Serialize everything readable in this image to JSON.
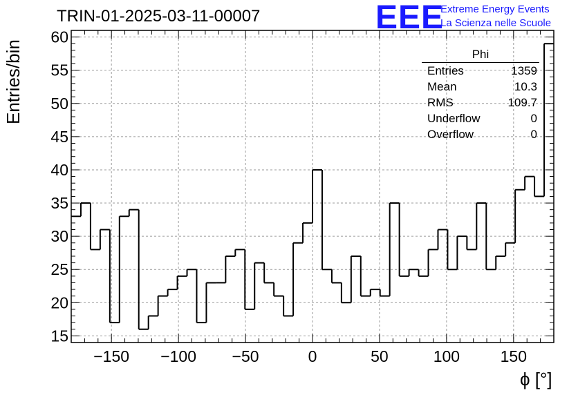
{
  "title": "TRIN-01-2025-03-11-00007",
  "logo": {
    "mark": "EEE",
    "line1": "Extreme Energy Events",
    "line2": "La Scienza nelle Scuole",
    "color": "#1a1aff"
  },
  "stats": {
    "title": "Phi",
    "rows": [
      {
        "label": "Entries",
        "value": "1359"
      },
      {
        "label": "Mean",
        "value": "10.3"
      },
      {
        "label": "RMS",
        "value": "109.7"
      },
      {
        "label": "Underflow",
        "value": "0"
      },
      {
        "label": "Overflow",
        "value": "0"
      }
    ]
  },
  "chart_data": {
    "type": "histogram",
    "xlabel": "ϕ [°]",
    "ylabel": "Entries/bin",
    "xlim": [
      -180,
      180
    ],
    "ylim": [
      14,
      61
    ],
    "bin_width": 7.2,
    "values": [
      33,
      35,
      28,
      31,
      17,
      33,
      34,
      16,
      18,
      21,
      22,
      24,
      25,
      17,
      23,
      23,
      27,
      28,
      19,
      26,
      23,
      21,
      18,
      29,
      32,
      40,
      25,
      23,
      20,
      27,
      21,
      22,
      21,
      35,
      24,
      25,
      24,
      28,
      31,
      25,
      30,
      28,
      35,
      25,
      27,
      29,
      37,
      39,
      36,
      59
    ],
    "x_ticks": [
      -150,
      -100,
      -50,
      0,
      50,
      100,
      150
    ],
    "y_ticks": [
      15,
      20,
      25,
      30,
      35,
      40,
      45,
      50,
      55,
      60
    ],
    "grid": true,
    "line_color": "#000000"
  }
}
